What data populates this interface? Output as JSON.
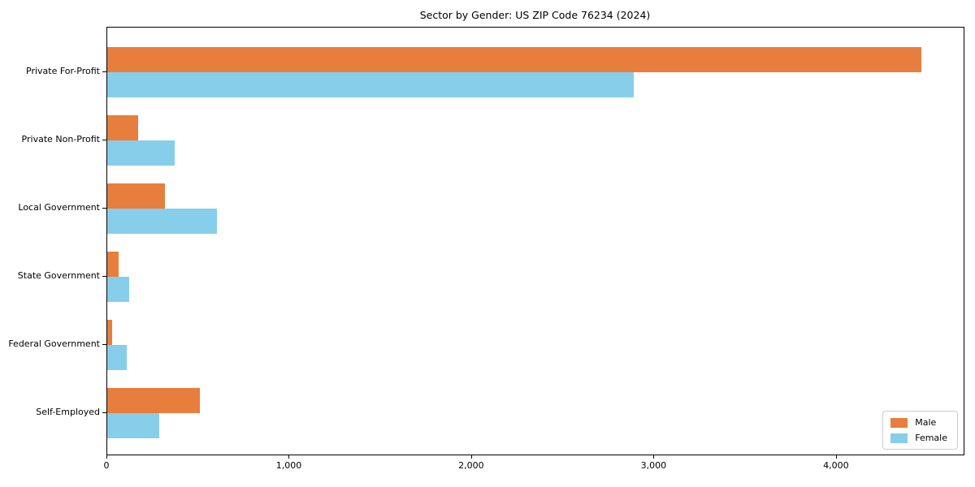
{
  "title": "Sector by Gender: US ZIP Code 76234 (2024)",
  "colors": {
    "male": "#e87e3d",
    "female": "#87ceeb",
    "spine": "#000000",
    "legend_border": "#cccccc",
    "background": "#ffffff"
  },
  "legend": {
    "items": [
      {
        "label": "Male",
        "color": "#e87e3d"
      },
      {
        "label": "Female",
        "color": "#87ceeb"
      }
    ]
  },
  "chart_data": {
    "type": "bar",
    "orientation": "horizontal",
    "title": "Sector by Gender: US ZIP Code 76234 (2024)",
    "categories": [
      "Private For-Profit",
      "Private Non-Profit",
      "Local Government",
      "State Government",
      "Federal Government",
      "Self-Employed"
    ],
    "series": [
      {
        "name": "Male",
        "color": "#e87e3d",
        "values": [
          4470,
          170,
          315,
          62,
          27,
          510
        ]
      },
      {
        "name": "Female",
        "color": "#87ceeb",
        "values": [
          2890,
          370,
          600,
          120,
          107,
          285
        ]
      }
    ],
    "xlabel": "",
    "ylabel": "",
    "xlim": [
      0,
      4700
    ],
    "xticks": [
      0,
      1000,
      2000,
      3000,
      4000
    ],
    "xtick_labels": [
      "0",
      "1,000",
      "2,000",
      "3,000",
      "4,000"
    ],
    "grid": false,
    "legend_position": "lower right"
  }
}
